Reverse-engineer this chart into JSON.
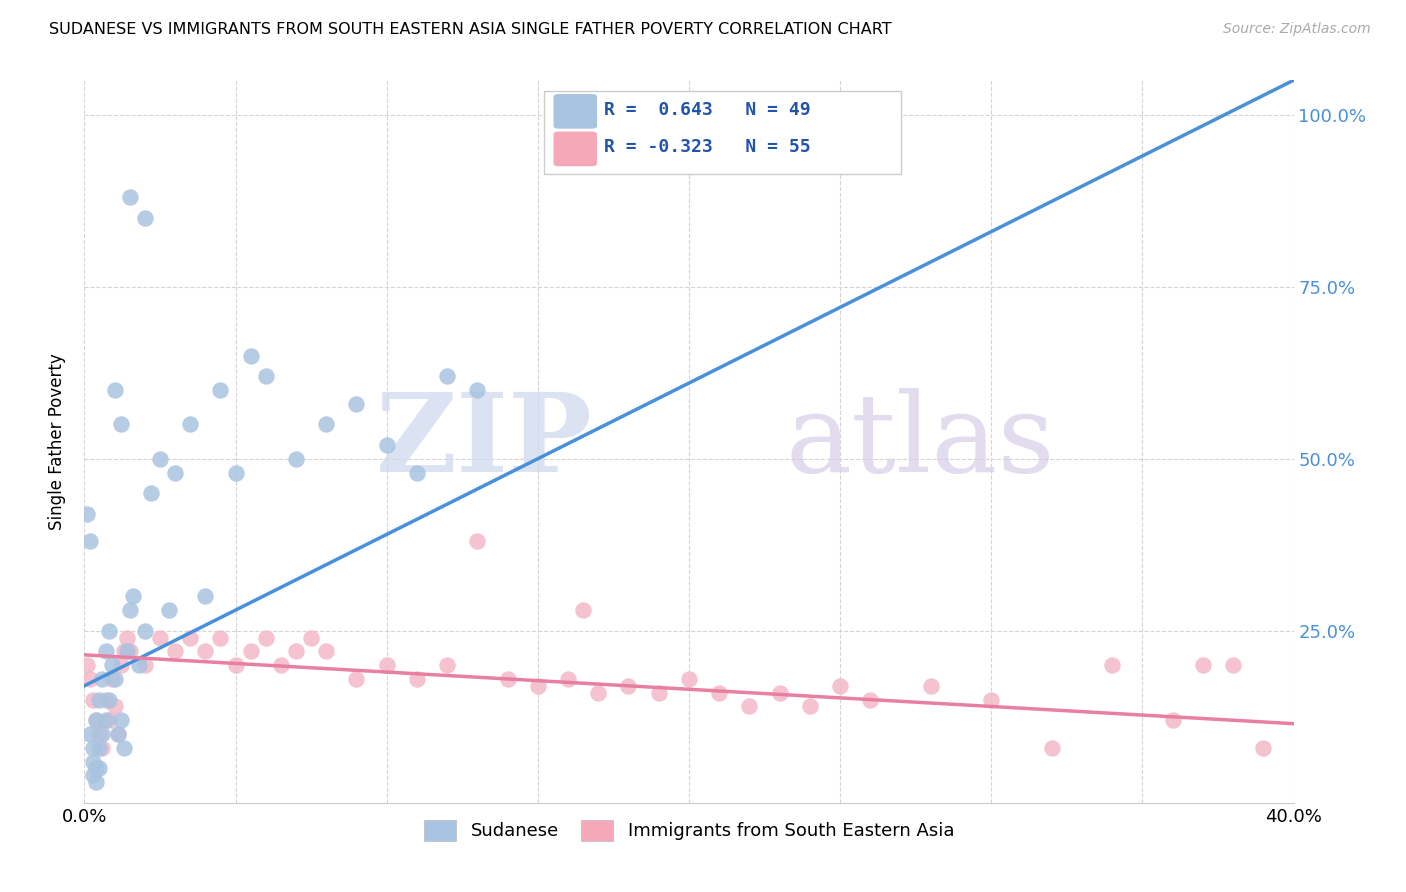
{
  "title": "SUDANESE VS IMMIGRANTS FROM SOUTH EASTERN ASIA SINGLE FATHER POVERTY CORRELATION CHART",
  "source": "Source: ZipAtlas.com",
  "ylabel": "Single Father Poverty",
  "right_yticks": [
    "100.0%",
    "75.0%",
    "50.0%",
    "25.0%"
  ],
  "right_ytick_vals": [
    1.0,
    0.75,
    0.5,
    0.25
  ],
  "legend_color1": "#a8c4e0",
  "legend_color2": "#f4a8b8",
  "scatter_color1": "#a8c4e0",
  "scatter_color2": "#f4b8c8",
  "line_color1": "#4a90d9",
  "line_color2": "#e87fa0",
  "xlim": [
    0.0,
    0.4
  ],
  "ylim": [
    0.0,
    1.05
  ],
  "blue_x": [
    0.001,
    0.002,
    0.002,
    0.003,
    0.003,
    0.003,
    0.004,
    0.004,
    0.004,
    0.005,
    0.005,
    0.005,
    0.006,
    0.006,
    0.007,
    0.007,
    0.008,
    0.008,
    0.009,
    0.01,
    0.011,
    0.012,
    0.013,
    0.014,
    0.015,
    0.016,
    0.018,
    0.02,
    0.022,
    0.025,
    0.028,
    0.03,
    0.035,
    0.04,
    0.045,
    0.05,
    0.055,
    0.06,
    0.07,
    0.08,
    0.09,
    0.1,
    0.11,
    0.12,
    0.13,
    0.01,
    0.012,
    0.015,
    0.02
  ],
  "blue_y": [
    0.42,
    0.38,
    0.1,
    0.08,
    0.06,
    0.04,
    0.12,
    0.05,
    0.03,
    0.15,
    0.08,
    0.05,
    0.18,
    0.1,
    0.22,
    0.12,
    0.25,
    0.15,
    0.2,
    0.18,
    0.1,
    0.12,
    0.08,
    0.22,
    0.28,
    0.3,
    0.2,
    0.25,
    0.45,
    0.5,
    0.28,
    0.48,
    0.55,
    0.3,
    0.6,
    0.48,
    0.65,
    0.62,
    0.5,
    0.55,
    0.58,
    0.52,
    0.48,
    0.62,
    0.6,
    0.6,
    0.55,
    0.88,
    0.85
  ],
  "pink_x": [
    0.001,
    0.002,
    0.003,
    0.004,
    0.005,
    0.006,
    0.007,
    0.008,
    0.009,
    0.01,
    0.011,
    0.012,
    0.013,
    0.014,
    0.015,
    0.02,
    0.025,
    0.03,
    0.035,
    0.04,
    0.045,
    0.05,
    0.055,
    0.06,
    0.065,
    0.07,
    0.075,
    0.08,
    0.09,
    0.1,
    0.11,
    0.12,
    0.13,
    0.14,
    0.15,
    0.16,
    0.17,
    0.18,
    0.19,
    0.2,
    0.21,
    0.22,
    0.23,
    0.24,
    0.25,
    0.26,
    0.28,
    0.3,
    0.32,
    0.34,
    0.36,
    0.37,
    0.38,
    0.39,
    0.165
  ],
  "pink_y": [
    0.2,
    0.18,
    0.15,
    0.12,
    0.1,
    0.08,
    0.15,
    0.12,
    0.18,
    0.14,
    0.1,
    0.2,
    0.22,
    0.24,
    0.22,
    0.2,
    0.24,
    0.22,
    0.24,
    0.22,
    0.24,
    0.2,
    0.22,
    0.24,
    0.2,
    0.22,
    0.24,
    0.22,
    0.18,
    0.2,
    0.18,
    0.2,
    0.38,
    0.18,
    0.17,
    0.18,
    0.16,
    0.17,
    0.16,
    0.18,
    0.16,
    0.14,
    0.16,
    0.14,
    0.17,
    0.15,
    0.17,
    0.15,
    0.08,
    0.2,
    0.12,
    0.2,
    0.2,
    0.08,
    0.28
  ]
}
